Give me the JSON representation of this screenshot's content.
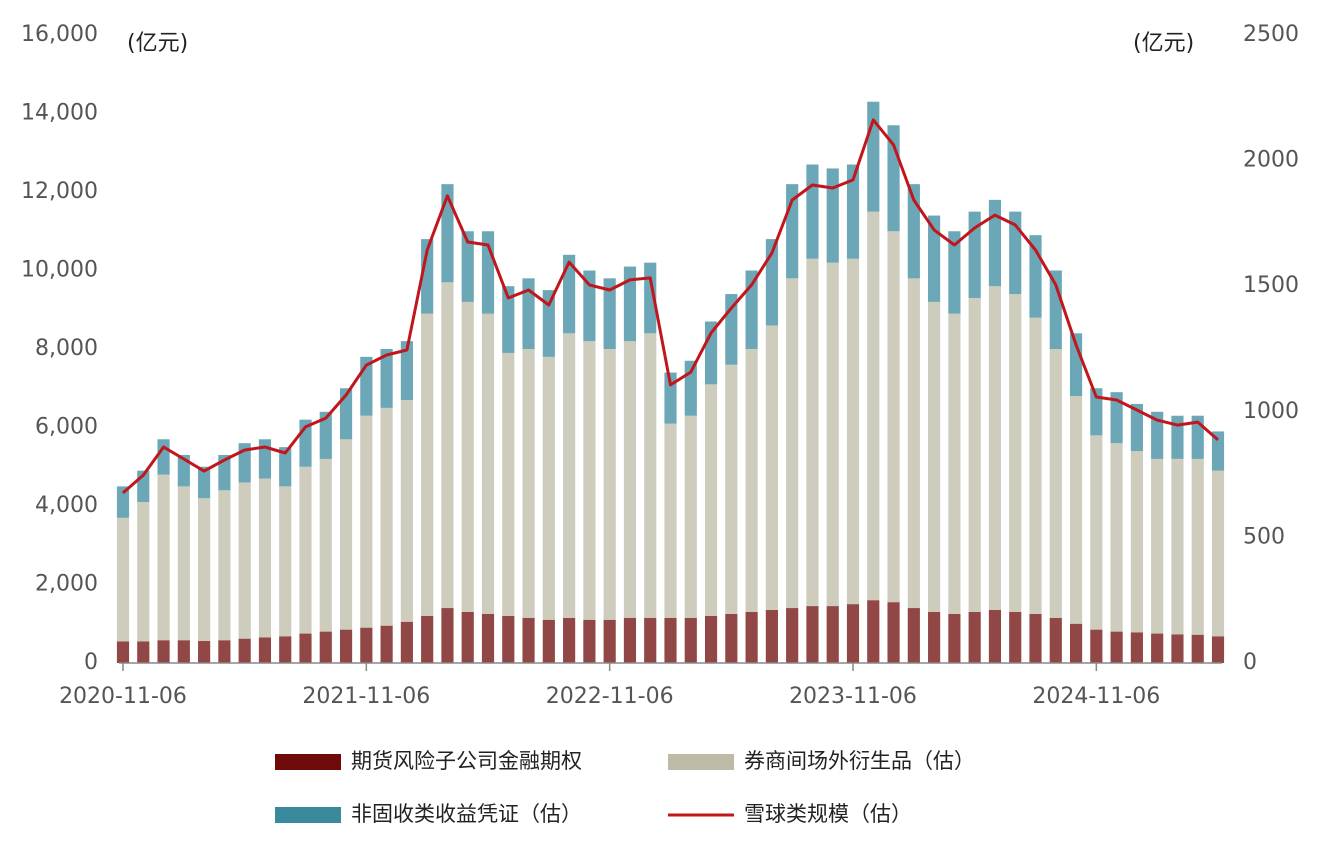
{
  "chart_data": {
    "type": "bar",
    "stacked": true,
    "y_unit": "(亿元)",
    "y2_unit": "(亿元)",
    "categories": [
      "2020-11-06",
      null,
      null,
      null,
      null,
      null,
      null,
      null,
      null,
      null,
      null,
      null,
      "2021-11-06",
      null,
      null,
      null,
      null,
      null,
      null,
      null,
      null,
      null,
      null,
      null,
      "2022-11-06",
      null,
      null,
      null,
      null,
      null,
      null,
      null,
      null,
      null,
      null,
      null,
      "2023-11-06",
      null,
      null,
      null,
      null,
      null,
      null,
      null,
      null,
      null,
      null,
      null,
      "2024-11-06",
      null,
      null,
      null,
      null,
      null,
      null
    ],
    "series": [
      {
        "name": "期货风险子公司金融期权",
        "color": "#6e0a0a",
        "type": "bar",
        "axis": "y",
        "values": [
          550,
          550,
          580,
          580,
          560,
          580,
          620,
          650,
          680,
          750,
          800,
          850,
          900,
          950,
          1050,
          1200,
          1400,
          1300,
          1250,
          1200,
          1150,
          1100,
          1150,
          1100,
          1100,
          1150,
          1150,
          1150,
          1150,
          1200,
          1250,
          1300,
          1350,
          1400,
          1450,
          1450,
          1500,
          1600,
          1550,
          1400,
          1300,
          1250,
          1300,
          1350,
          1300,
          1250,
          1150,
          1000,
          850,
          800,
          780,
          750,
          730,
          720,
          680
        ]
      },
      {
        "name": "券商间场外衍生品（估）",
        "color": "#bdbba6",
        "type": "bar",
        "axis": "y",
        "values": [
          3150,
          3550,
          4220,
          3920,
          3640,
          3820,
          3980,
          4050,
          3820,
          4250,
          4400,
          4850,
          5400,
          5550,
          5650,
          7700,
          8300,
          7900,
          7650,
          6700,
          6850,
          6700,
          7250,
          7100,
          6900,
          7050,
          7250,
          4950,
          5150,
          5900,
          6350,
          6700,
          7250,
          8400,
          8850,
          8750,
          8800,
          9900,
          9450,
          8400,
          7900,
          7650,
          8000,
          8250,
          8100,
          7550,
          6850,
          5800,
          4950,
          4800,
          4620,
          4450,
          4470,
          4480,
          4220
        ]
      },
      {
        "name": "非固收类收益凭证（估）",
        "color": "#3a8a9e",
        "type": "bar",
        "axis": "y",
        "values": [
          800,
          800,
          900,
          800,
          800,
          900,
          1000,
          1000,
          1000,
          1200,
          1200,
          1300,
          1500,
          1500,
          1500,
          1900,
          2500,
          1800,
          2100,
          1700,
          1800,
          1700,
          2000,
          1800,
          1800,
          1900,
          1800,
          1300,
          1400,
          1600,
          1800,
          2000,
          2200,
          2400,
          2400,
          2400,
          2400,
          2800,
          2700,
          2400,
          2200,
          2100,
          2200,
          2200,
          2100,
          2100,
          2000,
          1600,
          1200,
          1300,
          1200,
          1200,
          1100,
          1100,
          1000
        ]
      },
      {
        "name": "雪球类规模（估）",
        "color": "#c0161c",
        "type": "line",
        "axis": "y2",
        "values": [
          677,
          748,
          860,
          812,
          764,
          808,
          848,
          860,
          836,
          940,
          975,
          1067,
          1186,
          1226,
          1246,
          1644,
          1860,
          1676,
          1664,
          1453,
          1485,
          1425,
          1596,
          1505,
          1485,
          1525,
          1533,
          1107,
          1158,
          1314,
          1413,
          1505,
          1632,
          1843,
          1903,
          1891,
          1923,
          2162,
          2062,
          1843,
          1724,
          1664,
          1732,
          1783,
          1744,
          1644,
          1505,
          1266,
          1059,
          1047,
          1007,
          967,
          947,
          959,
          888
        ]
      }
    ],
    "ylim": [
      0,
      16000
    ],
    "yticks": [
      0,
      {
        "value": 2000,
        "label": "2,000"
      },
      {
        "value": 4000,
        "label": "4,000"
      },
      {
        "value": 6000,
        "label": "6,000"
      },
      {
        "value": 8000,
        "label": "8,000"
      },
      {
        "value": 10000,
        "label": "10,000"
      },
      {
        "value": 12000,
        "label": "12,000"
      },
      {
        "value": 14000,
        "label": "14,000"
      },
      {
        "value": 16000,
        "label": "16,000"
      }
    ],
    "y2lim": [
      0,
      2500
    ],
    "y2ticks": [
      0,
      500,
      1000,
      1500,
      2000,
      2500
    ],
    "grid": false,
    "legend": "bottom"
  }
}
